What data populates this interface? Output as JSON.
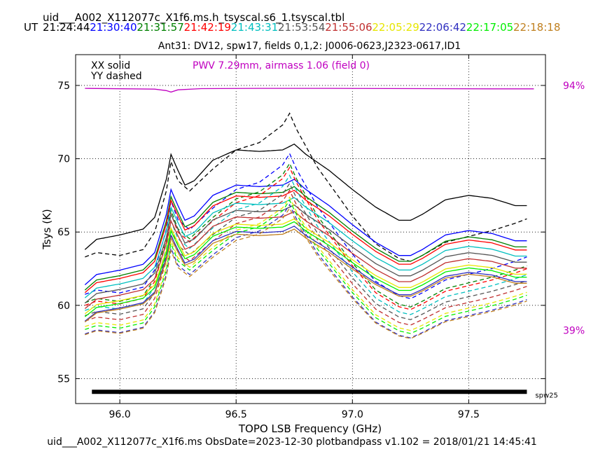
{
  "header": {
    "filename": "uid___A002_X112077c_X1f6.ms.h_tsyscal.s6_1.tsyscal.tbl",
    "ut_label": "UT",
    "times": [
      {
        "text": "21:24:44",
        "color": "#000000"
      },
      {
        "text": "21:30:40",
        "color": "#0000ff"
      },
      {
        "text": "21:31:57",
        "color": "#008000"
      },
      {
        "text": "21:42:19",
        "color": "#ff0000"
      },
      {
        "text": "21:43:31",
        "color": "#00bfbf"
      },
      {
        "text": "21:53:54",
        "color": "#555555"
      },
      {
        "text": "21:55:06",
        "color": "#c03030"
      },
      {
        "text": "22:05:29",
        "color": "#e6e600"
      },
      {
        "text": "22:06:42",
        "color": "#3030c0"
      },
      {
        "text": "22:17:05",
        "color": "#00ee00"
      },
      {
        "text": "22:18:18",
        "color": "#c08020"
      }
    ]
  },
  "footer": {
    "text": "uid___A002_X112077c_X1f6.ms  ObsDate=2023-12-30   plotbandpass v1.102 = 2018/01/21 14:45:41"
  },
  "chart_data": {
    "type": "line",
    "title": "Ant31: DV12,  spw17,  fields 0,1,2: J0006-0623,J2323-0617,ID1",
    "xlabel": "TOPO LSB Frequency (GHz)",
    "ylabel": "Tsys (K)",
    "xlim": [
      95.81,
      97.83
    ],
    "ylim": [
      53.3,
      77.1
    ],
    "xticks": [
      96.0,
      96.5,
      97.0,
      97.5
    ],
    "xtick_labels": [
      "96.0",
      "96.5",
      "97.0",
      "97.5"
    ],
    "yticks": [
      55,
      60,
      65,
      70,
      75
    ],
    "ytick_labels": [
      "55",
      "60",
      "65",
      "70",
      "75"
    ],
    "grid": true,
    "legend_lines": [
      "XX solid",
      "YY dashed"
    ],
    "pwv_text": "PWV 7.29mm, airmass 1.06 (field 0)",
    "pwv_color": "#c000c0",
    "right_labels": [
      {
        "text": "94%",
        "y": 75
      },
      {
        "text": "39%",
        "y": 58.3
      }
    ],
    "spw_bar": {
      "x_start": 95.88,
      "x_end": 97.75,
      "y": 54.1,
      "label": "spw25"
    },
    "transmission": {
      "color": "#c000c0",
      "points": [
        [
          95.85,
          74.8
        ],
        [
          96.15,
          74.75
        ],
        [
          96.2,
          74.65
        ],
        [
          96.22,
          74.55
        ],
        [
          96.25,
          74.7
        ],
        [
          96.35,
          74.78
        ],
        [
          96.6,
          74.8
        ],
        [
          96.9,
          74.8
        ],
        [
          97.3,
          74.78
        ],
        [
          97.6,
          74.77
        ],
        [
          97.78,
          74.77
        ]
      ]
    },
    "xx_shape": [
      [
        95.85,
        -2.2
      ],
      [
        95.9,
        -1.5
      ],
      [
        96.0,
        -1.2
      ],
      [
        96.1,
        -0.8
      ],
      [
        96.15,
        0.0
      ],
      [
        96.2,
        2.6
      ],
      [
        96.22,
        4.3
      ],
      [
        96.25,
        3.2
      ],
      [
        96.28,
        2.2
      ],
      [
        96.32,
        2.5
      ],
      [
        96.4,
        3.9
      ],
      [
        96.5,
        4.6
      ],
      [
        96.6,
        4.5
      ],
      [
        96.7,
        4.6
      ],
      [
        96.75,
        5.0
      ],
      [
        96.8,
        4.3
      ],
      [
        96.9,
        3.2
      ],
      [
        97.0,
        1.9
      ],
      [
        97.1,
        0.7
      ],
      [
        97.2,
        -0.2
      ],
      [
        97.25,
        -0.2
      ],
      [
        97.3,
        0.2
      ],
      [
        97.4,
        1.2
      ],
      [
        97.5,
        1.5
      ],
      [
        97.6,
        1.3
      ],
      [
        97.7,
        0.8
      ],
      [
        97.75,
        0.8
      ]
    ],
    "yy_shape": [
      [
        95.85,
        -2.5
      ],
      [
        95.9,
        -2.2
      ],
      [
        96.0,
        -2.4
      ],
      [
        96.1,
        -2.0
      ],
      [
        96.15,
        -0.8
      ],
      [
        96.2,
        2.0
      ],
      [
        96.22,
        4.0
      ],
      [
        96.25,
        2.7
      ],
      [
        96.3,
        2.0
      ],
      [
        96.4,
        3.5
      ],
      [
        96.5,
        4.8
      ],
      [
        96.6,
        5.3
      ],
      [
        96.7,
        6.5
      ],
      [
        96.73,
        7.3
      ],
      [
        96.76,
        6.2
      ],
      [
        96.85,
        3.6
      ],
      [
        97.0,
        0.3
      ],
      [
        97.1,
        -1.6
      ],
      [
        97.2,
        -2.6
      ],
      [
        97.25,
        -2.8
      ],
      [
        97.3,
        -2.4
      ],
      [
        97.4,
        -1.5
      ],
      [
        97.5,
        -1.1
      ],
      [
        97.6,
        -0.7
      ],
      [
        97.7,
        -0.2
      ],
      [
        97.75,
        0.1
      ]
    ],
    "series": [
      {
        "color": "#000000",
        "pol": "XX",
        "base": 66.0,
        "scale": 1.0
      },
      {
        "color": "#000000",
        "pol": "YY",
        "base": 65.8,
        "scale": 1.0
      },
      {
        "color": "#0000ff",
        "pol": "XX",
        "base": 63.6,
        "scale": 1.0
      },
      {
        "color": "#0000ff",
        "pol": "YY",
        "base": 63.2,
        "scale": 0.98
      },
      {
        "color": "#008000",
        "pol": "XX",
        "base": 63.2,
        "scale": 0.98
      },
      {
        "color": "#008000",
        "pol": "YY",
        "base": 62.6,
        "scale": 0.97
      },
      {
        "color": "#ff0000",
        "pol": "XX",
        "base": 63.0,
        "scale": 0.97
      },
      {
        "color": "#ff0000",
        "pol": "YY",
        "base": 62.4,
        "scale": 0.96
      },
      {
        "color": "#00bfbf",
        "pol": "XX",
        "base": 62.6,
        "scale": 0.95
      },
      {
        "color": "#00bfbf",
        "pol": "YY",
        "base": 62.0,
        "scale": 0.94
      },
      {
        "color": "#555555",
        "pol": "XX",
        "base": 62.2,
        "scale": 0.93
      },
      {
        "color": "#555555",
        "pol": "YY",
        "base": 61.6,
        "scale": 0.92
      },
      {
        "color": "#c03030",
        "pol": "XX",
        "base": 61.8,
        "scale": 0.92
      },
      {
        "color": "#c03030",
        "pol": "YY",
        "base": 61.2,
        "scale": 0.91
      },
      {
        "color": "#e6e600",
        "pol": "XX",
        "base": 61.4,
        "scale": 0.9
      },
      {
        "color": "#e6e600",
        "pol": "YY",
        "base": 60.8,
        "scale": 0.9
      },
      {
        "color": "#3030c0",
        "pol": "XX",
        "base": 60.9,
        "scale": 0.9
      },
      {
        "color": "#3030c0",
        "pol": "YY",
        "base": 60.3,
        "scale": 0.9
      },
      {
        "color": "#00ee00",
        "pol": "XX",
        "base": 61.2,
        "scale": 0.9
      },
      {
        "color": "#00ee00",
        "pol": "YY",
        "base": 60.6,
        "scale": 0.9
      },
      {
        "color": "#c08020",
        "pol": "XX",
        "base": 60.8,
        "scale": 0.88
      },
      {
        "color": "#c08020",
        "pol": "YY",
        "base": 60.2,
        "scale": 0.88
      }
    ]
  }
}
